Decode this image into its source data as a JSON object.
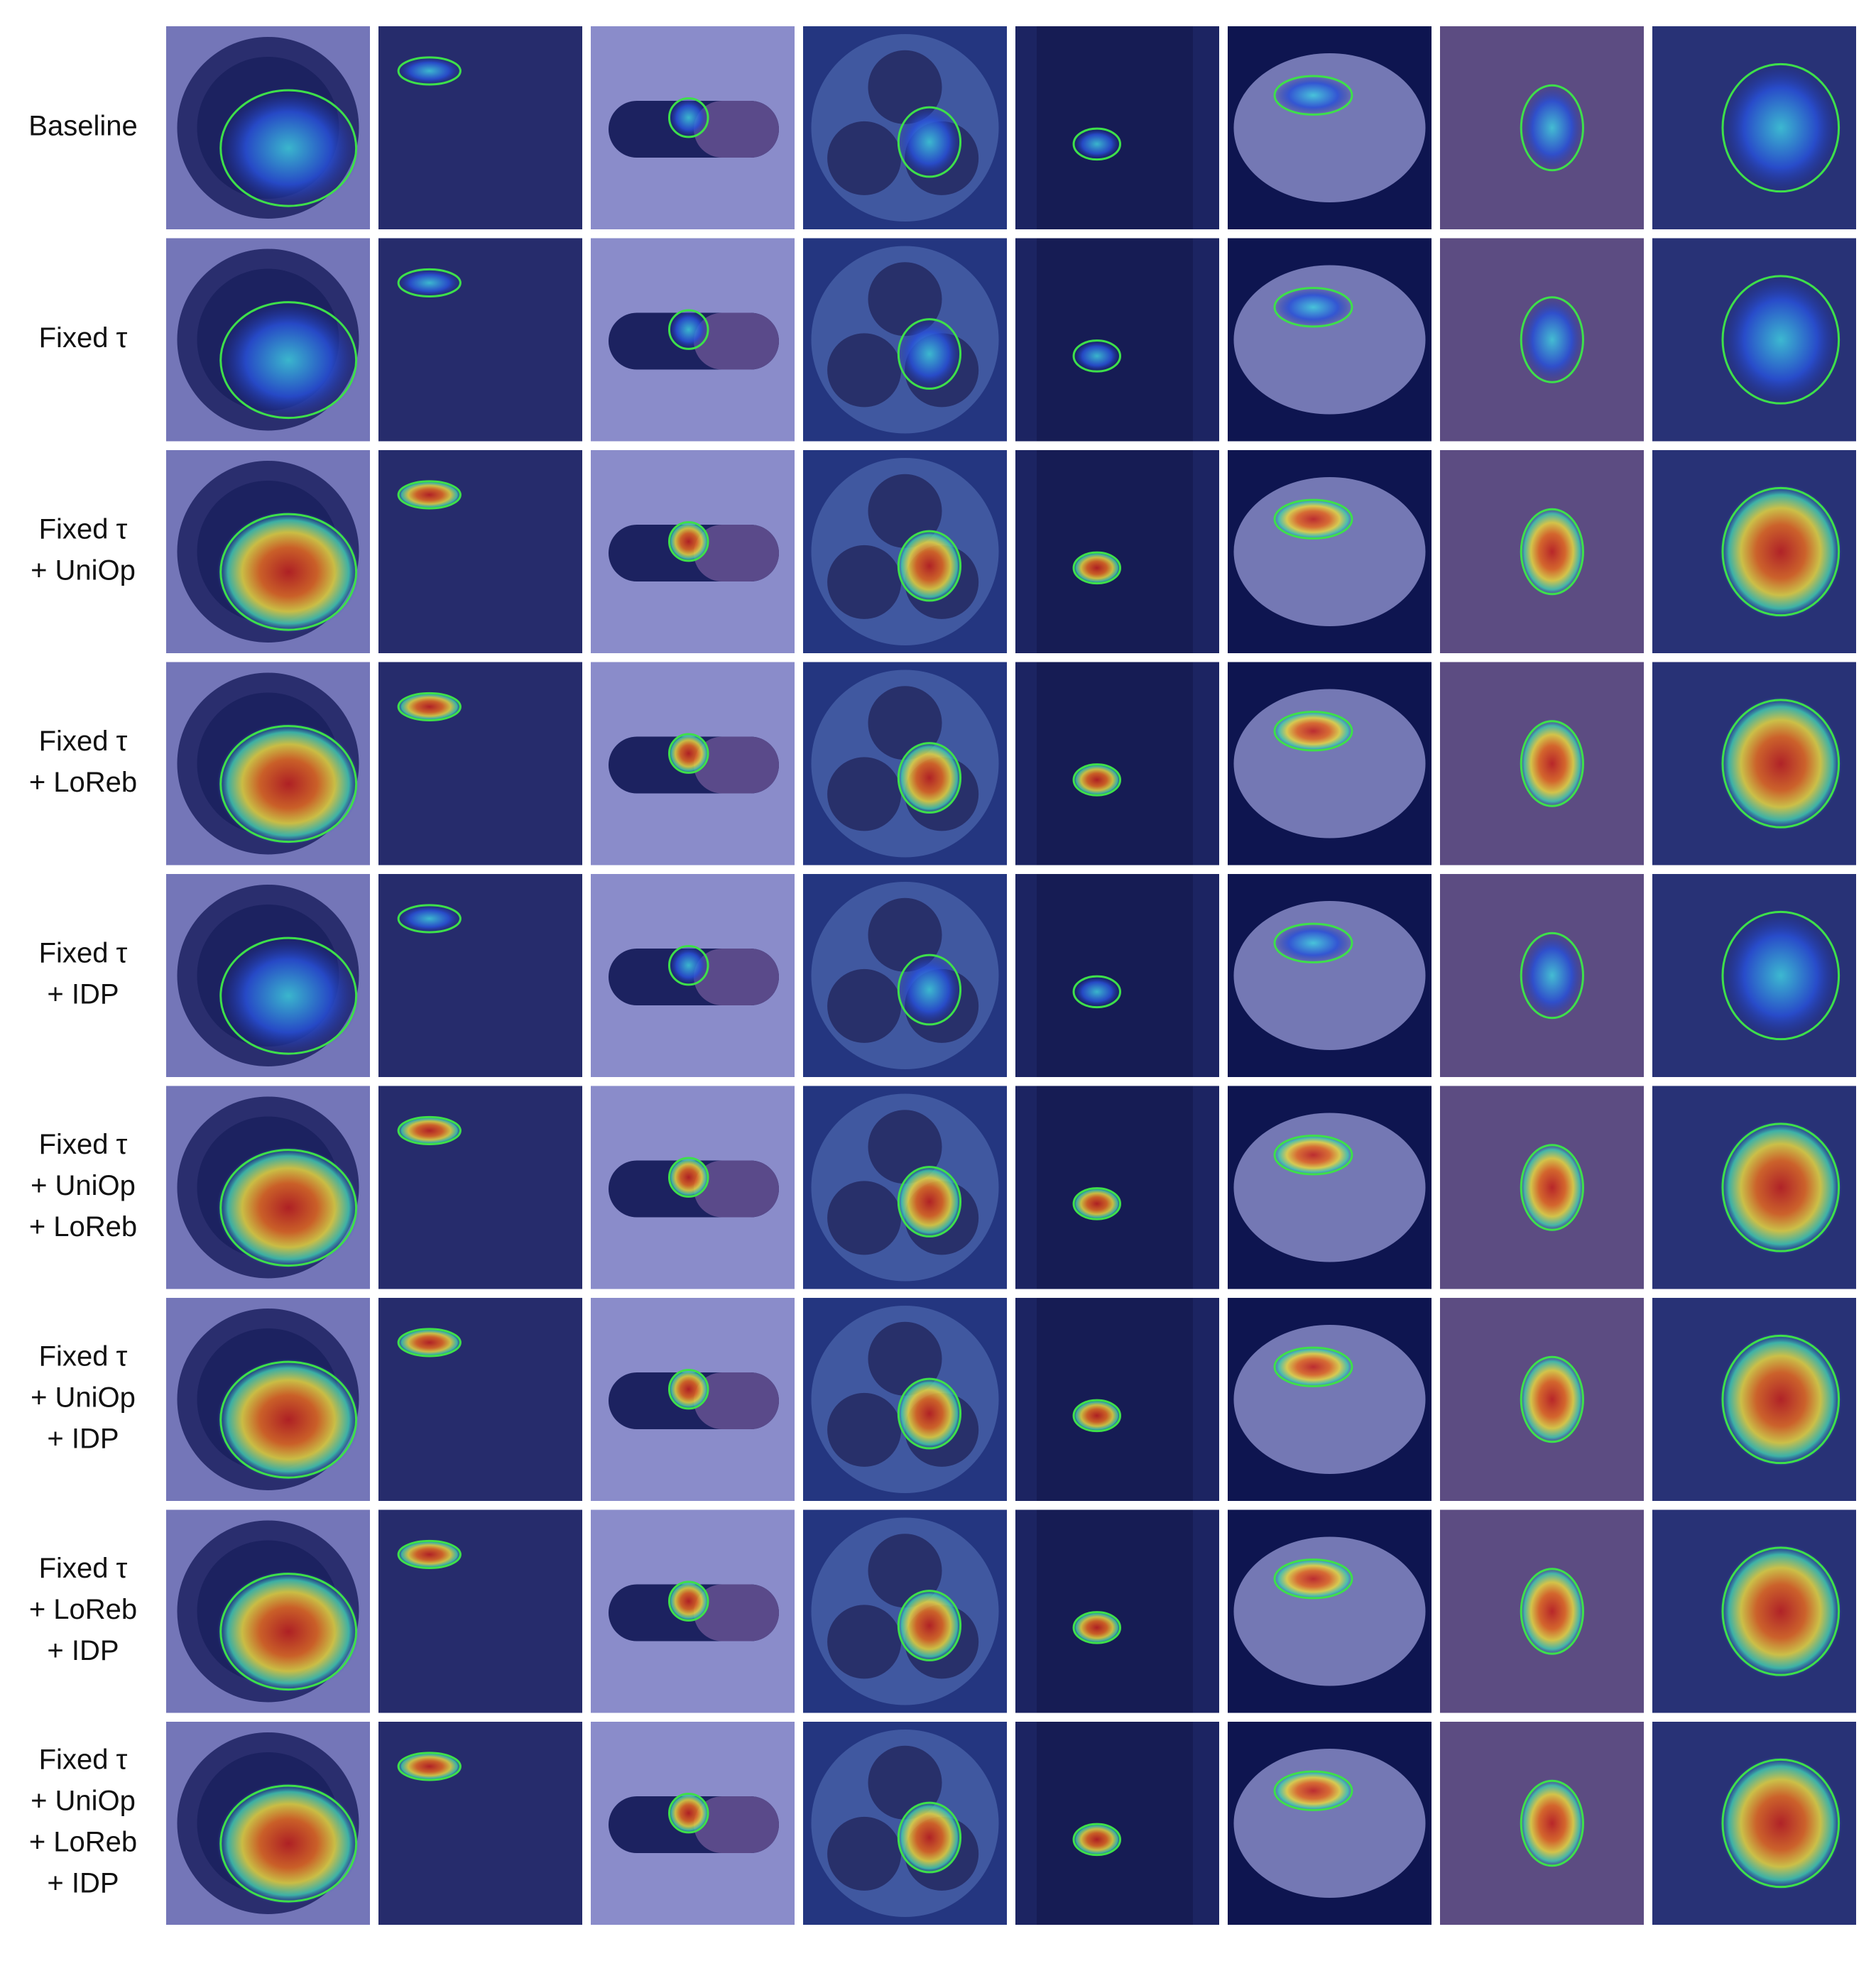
{
  "rows": [
    {
      "lines": [
        "Baseline"
      ]
    },
    {
      "lines": [
        "Fixed τ"
      ]
    },
    {
      "lines": [
        "Fixed τ",
        "+ UniOp"
      ]
    },
    {
      "lines": [
        "Fixed τ",
        "+ LoReb"
      ]
    },
    {
      "lines": [
        "Fixed τ",
        "+ IDP"
      ]
    },
    {
      "lines": [
        "Fixed τ",
        "+ UniOp",
        "+ LoReb"
      ]
    },
    {
      "lines": [
        "Fixed τ",
        "+ UniOp",
        "+ IDP"
      ]
    },
    {
      "lines": [
        "Fixed τ",
        "+ LoReb",
        "+ IDP"
      ]
    },
    {
      "lines": [
        "Fixed τ",
        "+ UniOp",
        "+ LoReb",
        "+ IDP"
      ]
    }
  ]
}
